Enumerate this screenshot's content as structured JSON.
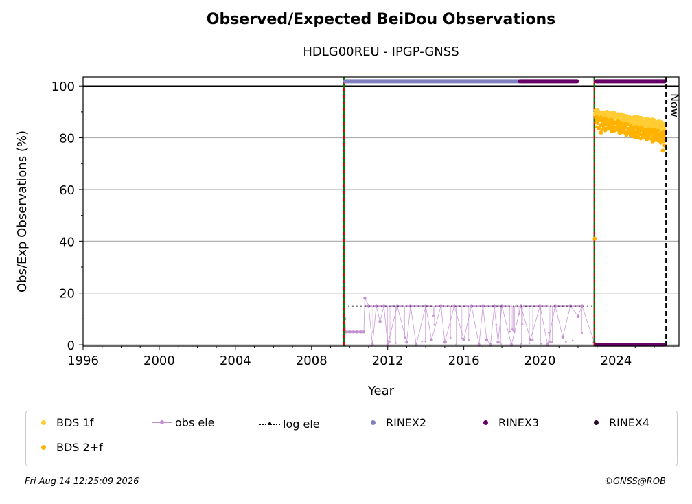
{
  "title": "Observed/Expected BeiDou Observations",
  "subtitle": "HDLG00REU - IPGP-GNSS",
  "footer": {
    "timestamp": "Fri Aug 14 12:25:09 2026",
    "credit": "©GNSS@ROB"
  },
  "colors": {
    "bds1f": "#ffcc33",
    "bds2f": "#ffb300",
    "obs_ele": "#c38fd0",
    "log_ele": "#000000",
    "rinex2": "#8080c0",
    "rinex3": "#660066",
    "rinex4": "#2a0a2a",
    "grid": "#b0b0b0",
    "event_green": "#007f00",
    "event_red": "#cc0000"
  },
  "legend": {
    "bds1f": "BDS 1f",
    "obs_ele": "obs ele",
    "log_ele": "log ele",
    "rinex2": "RINEX2",
    "rinex3": "RINEX3",
    "rinex4": "RINEX4",
    "bds2f": "BDS 2+f"
  },
  "chart_data": {
    "type": "scatter",
    "title": "Observed/Expected BeiDou Observations",
    "subtitle": "HDLG00REU - IPGP-GNSS",
    "xlabel": "Year",
    "ylabel": "Obs/Exp Observations (%)",
    "xlim": [
      1996,
      2027.3
    ],
    "ylim": [
      -0.5,
      103.5
    ],
    "xticks": [
      1996,
      2000,
      2004,
      2008,
      2012,
      2016,
      2020,
      2024
    ],
    "yticks": [
      0,
      20,
      40,
      60,
      80,
      100
    ],
    "grid": "horizontal",
    "now_label": "Now",
    "now_x": 2026.62,
    "event_lines_x": [
      2009.7,
      2022.85
    ],
    "reference_line_y": 100,
    "series": [
      {
        "name": "BDS 1f",
        "kind": "scatter",
        "x": [
          2022.9,
          2023.2,
          2023.5,
          2023.8,
          2024.1,
          2024.4,
          2024.7,
          2025.0,
          2025.3,
          2025.6,
          2025.9,
          2026.2,
          2026.5
        ],
        "y": [
          89,
          88,
          90,
          87,
          89,
          88,
          86,
          88,
          87,
          86,
          87,
          85,
          84
        ]
      },
      {
        "name": "BDS 2+f",
        "kind": "scatter",
        "x": [
          2022.88,
          2022.95,
          2023.2,
          2023.5,
          2023.8,
          2024.1,
          2024.4,
          2024.7,
          2025.0,
          2025.3,
          2025.6,
          2025.9,
          2026.2,
          2026.45,
          2026.55
        ],
        "y": [
          41,
          86,
          82,
          87,
          85,
          86,
          84,
          82,
          84,
          83,
          81,
          80,
          79,
          75,
          77
        ]
      },
      {
        "name": "obs ele",
        "kind": "line-markers",
        "x": [
          2009.75,
          2009.8,
          2010.0,
          2010.2,
          2010.4,
          2010.6,
          2010.75,
          2010.8,
          2011.0,
          2011.2,
          2011.4,
          2011.6,
          2011.8,
          2012.0,
          2012.5,
          2013.0,
          2013.2,
          2013.5,
          2014.0,
          2014.3,
          2014.8,
          2015.0,
          2015.5,
          2016.0,
          2016.4,
          2016.8,
          2017.0,
          2017.2,
          2017.4,
          2017.6,
          2017.8,
          2018.0,
          2018.5,
          2019.0,
          2019.5,
          2020.0,
          2020.4,
          2020.8,
          2021.2,
          2021.6,
          2022.0,
          2022.2,
          2022.85,
          2023.0
        ],
        "y": [
          10,
          5,
          5,
          5,
          5,
          5,
          5,
          18,
          15,
          0,
          15,
          9,
          15,
          0,
          15,
          1,
          15,
          0,
          15,
          2,
          15,
          1,
          15,
          2,
          15,
          0,
          15,
          2,
          0,
          15,
          1,
          15,
          0,
          15,
          2,
          15,
          0,
          15,
          3,
          15,
          11,
          15,
          1,
          0
        ]
      },
      {
        "name": "log ele",
        "kind": "dotted-line",
        "x": [
          2009.7,
          2022.85,
          2022.85,
          2026.62
        ],
        "y": [
          15,
          15,
          0,
          0
        ]
      },
      {
        "name": "RINEX2",
        "kind": "band",
        "x": [
          2009.75,
          2018.95
        ],
        "y": 101.8
      },
      {
        "name": "RINEX3",
        "kind": "band",
        "x": [
          2018.95,
          2021.95,
          2022.95,
          2026.55
        ],
        "y": 101.8
      },
      {
        "name": "RINEX3 (obs ele level)",
        "kind": "band",
        "x": [
          2022.9,
          2026.55
        ],
        "y": 0
      }
    ]
  }
}
